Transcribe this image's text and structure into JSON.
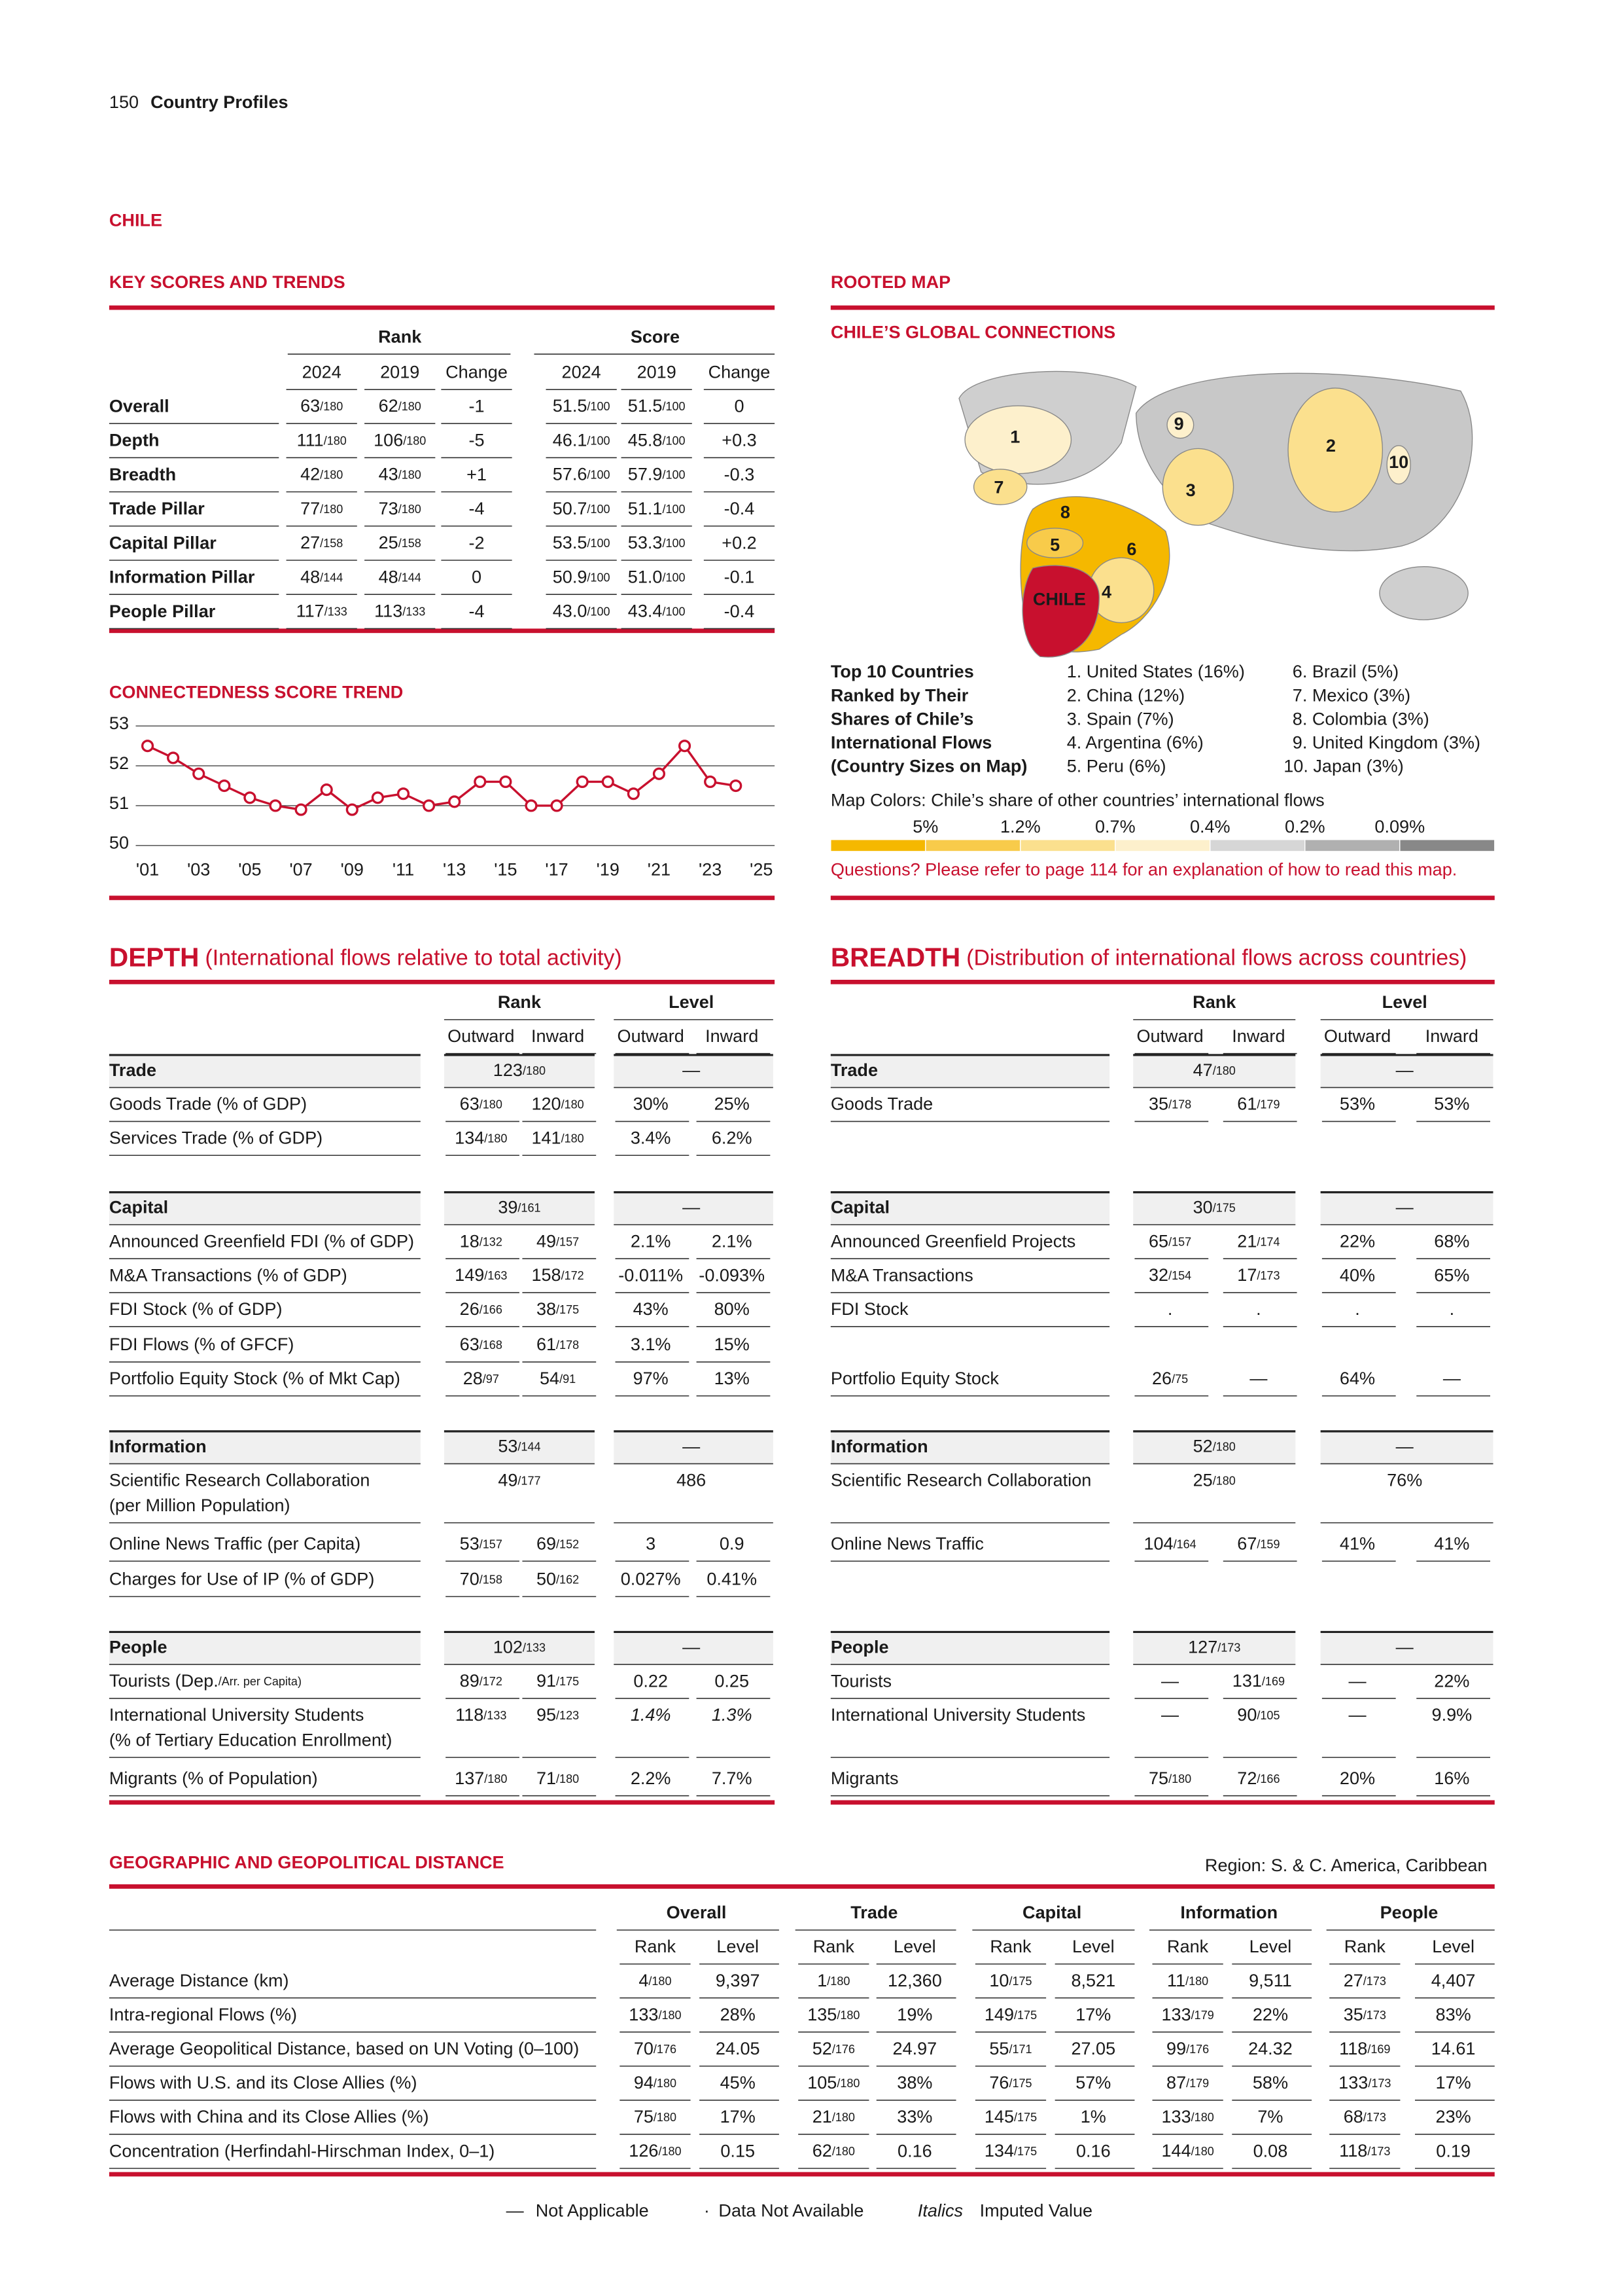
{
  "header": {
    "page": "150",
    "section": "Country Profiles"
  },
  "country": "CHILE",
  "key_scores": {
    "title": "KEY SCORES AND TRENDS",
    "groups": [
      "Rank",
      "Score"
    ],
    "columns": [
      "2024",
      "2019",
      "Change",
      "2024",
      "2019",
      "Change"
    ],
    "rows": [
      [
        "Overall",
        "63/180",
        "62/180",
        "-1",
        "51.5/100",
        "51.5/100",
        "0"
      ],
      [
        "Depth",
        "111/180",
        "106/180",
        "-5",
        "46.1/100",
        "45.8/100",
        "+0.3"
      ],
      [
        "Breadth",
        "42/180",
        "43/180",
        "+1",
        "57.6/100",
        "57.9/100",
        "-0.3"
      ],
      [
        "Trade Pillar",
        "77/180",
        "73/180",
        "-4",
        "50.7/100",
        "51.1/100",
        "-0.4"
      ],
      [
        "Capital Pillar",
        "27/158",
        "25/158",
        "-2",
        "53.5/100",
        "53.3/100",
        "+0.2"
      ],
      [
        "Information Pillar",
        "48/144",
        "48/144",
        "0",
        "50.9/100",
        "51.0/100",
        "-0.1"
      ],
      [
        "People Pillar",
        "117/133",
        "113/133",
        "-4",
        "43.0/100",
        "43.4/100",
        "-0.4"
      ]
    ]
  },
  "chart_data": {
    "type": "line",
    "title": "CONNECTEDNESS SCORE TREND",
    "color": "#c8102e",
    "x": [
      2001,
      2002,
      2003,
      2004,
      2005,
      2006,
      2007,
      2008,
      2009,
      2010,
      2011,
      2012,
      2013,
      2014,
      2015,
      2016,
      2017,
      2018,
      2019,
      2020,
      2021,
      2022,
      2023,
      2024
    ],
    "values": [
      52.5,
      52.2,
      51.8,
      51.5,
      51.2,
      51.0,
      50.9,
      51.4,
      50.9,
      51.2,
      51.3,
      51.0,
      51.1,
      51.6,
      51.6,
      51.0,
      51.0,
      51.6,
      51.6,
      51.3,
      51.8,
      52.5,
      51.6,
      51.5
    ],
    "xlim": [
      2001,
      2025
    ],
    "xticks": [
      {
        "value": 2001,
        "label": "'01"
      },
      {
        "value": 2003,
        "label": "'03"
      },
      {
        "value": 2005,
        "label": "'05"
      },
      {
        "value": 2007,
        "label": "'07"
      },
      {
        "value": 2009,
        "label": "'09"
      },
      {
        "value": 2011,
        "label": "'11"
      },
      {
        "value": 2013,
        "label": "'13"
      },
      {
        "value": 2015,
        "label": "'15"
      },
      {
        "value": 2017,
        "label": "'17"
      },
      {
        "value": 2019,
        "label": "'19"
      },
      {
        "value": 2021,
        "label": "'21"
      },
      {
        "value": 2023,
        "label": "'23"
      },
      {
        "value": 2025,
        "label": "'25"
      }
    ],
    "ylim": [
      50,
      53
    ],
    "yticks": [
      50,
      51,
      52,
      53
    ],
    "grid": true
  },
  "rooted_map": {
    "title": "ROOTED MAP",
    "subtitle": "CHILE’S GLOBAL CONNECTIONS",
    "labels": [
      "1",
      "2",
      "3",
      "4",
      "5",
      "6",
      "7",
      "8",
      "9",
      "10",
      "CHILE"
    ],
    "top10_heading": [
      "Top 10 Countries",
      "Ranked by Their",
      "Shares of Chile’s",
      "International Flows",
      "(Country Sizes on Map)"
    ],
    "countries": [
      "1. United States (16%)",
      "2. China (12%)",
      "3. Spain (7%)",
      "4. Argentina (6%)",
      "5. Peru (6%)",
      "6. Brazil (5%)",
      "7. Mexico (3%)",
      "8. Colombia (3%)",
      "9. United Kingdom (3%)",
      "10. Japan (3%)"
    ],
    "colors_heading": "Map Colors: Chile’s share of other countries’ international flows",
    "scale_labels": [
      "5%",
      "1.2%",
      "0.7%",
      "0.4%",
      "0.2%",
      "0.09%"
    ],
    "scale_colors": [
      "#f5b800",
      "#f8cb4a",
      "#fbe08e",
      "#fdf0cc",
      "#d6d6d6",
      "#b0b0b0",
      "#888888"
    ],
    "note": "Questions? Please refer to page 114 for an explanation of how to read this map."
  },
  "depth": {
    "title": "DEPTH",
    "subtitle": "(International flows relative to total activity)",
    "groups": [
      "Rank",
      "Level"
    ],
    "columns": [
      "Outward",
      "Inward",
      "Outward",
      "Inward"
    ],
    "sections": [
      {
        "name": "Trade",
        "rank": "123/180",
        "level": "—",
        "rows": [
          {
            "label": [
              "Goods Trade (% of GDP)"
            ],
            "cells": [
              "63/180",
              "120/180",
              "30%",
              "25%"
            ]
          },
          {
            "label": [
              "Services Trade (% of GDP)"
            ],
            "cells": [
              "134/180",
              "141/180",
              "3.4%",
              "6.2%"
            ]
          }
        ]
      },
      {
        "name": "Capital",
        "rank": "39/161",
        "level": "—",
        "rows": [
          {
            "label": [
              "Announced Greenfield FDI (% of GDP)"
            ],
            "cells": [
              "18/132",
              "49/157",
              "2.1%",
              "2.1%"
            ]
          },
          {
            "label": [
              "M&A Transactions (% of GDP)"
            ],
            "cells": [
              "149/163",
              "158/172",
              "-0.011%",
              "-0.093%"
            ]
          },
          {
            "label": [
              "FDI Stock (% of GDP)"
            ],
            "cells": [
              "26/166",
              "38/175",
              "43%",
              "80%"
            ]
          },
          {
            "label": [
              "FDI Flows (% of GFCF)"
            ],
            "cells": [
              "63/168",
              "61/178",
              "3.1%",
              "15%"
            ]
          },
          {
            "label": [
              "Portfolio Equity Stock (% of Mkt Cap)"
            ],
            "cells": [
              "28/97",
              "54/91",
              "97%",
              "13%"
            ]
          }
        ]
      },
      {
        "name": "Information",
        "rank": "53/144",
        "level": "—",
        "rows": [
          {
            "label": [
              "Scientific Research Collaboration",
              "(per Million Population)"
            ],
            "cells": [
              "49/177",
              "486"
            ]
          },
          {
            "label": [
              "Online News Traffic (per Capita)"
            ],
            "cells": [
              "53/157",
              "69/152",
              "3",
              "0.9"
            ]
          },
          {
            "label": [
              "Charges for Use of IP (% of GDP)"
            ],
            "cells": [
              "70/158",
              "50/162",
              "0.027%",
              "0.41%"
            ]
          }
        ]
      },
      {
        "name": "People",
        "rank": "102/133",
        "level": "—",
        "rows": [
          {
            "label": [
              "Tourists (Dep./Arr. per Capita)"
            ],
            "cells": [
              "89/172",
              "91/175",
              "0.22",
              "0.25"
            ]
          },
          {
            "label": [
              "International University Students",
              "(% of Tertiary Education Enrollment)"
            ],
            "cells": [
              "118/133",
              "95/123",
              "1.4%",
              "1.3%"
            ],
            "italic": true
          },
          {
            "label": [
              "Migrants (% of Population)"
            ],
            "cells": [
              "137/180",
              "71/180",
              "2.2%",
              "7.7%"
            ]
          }
        ]
      }
    ]
  },
  "breadth": {
    "title": "BREADTH",
    "subtitle": "(Distribution of international flows across countries)",
    "groups": [
      "Rank",
      "Level"
    ],
    "columns": [
      "Outward",
      "Inward",
      "Outward",
      "Inward"
    ],
    "sections": [
      {
        "name": "Trade",
        "rank": "47/180",
        "level": "—",
        "rows": [
          {
            "label": [
              "Goods Trade"
            ],
            "cells": [
              "35/178",
              "61/179",
              "53%",
              "53%"
            ]
          }
        ]
      },
      {
        "name": "Capital",
        "rank": "30/175",
        "level": "—",
        "rows": [
          {
            "label": [
              "Announced Greenfield Projects"
            ],
            "cells": [
              "65/157",
              "21/174",
              "22%",
              "68%"
            ]
          },
          {
            "label": [
              "M&A Transactions"
            ],
            "cells": [
              "32/154",
              "17/173",
              "40%",
              "65%"
            ]
          },
          {
            "label": [
              "FDI Stock"
            ],
            "cells": [
              ".",
              ".",
              ".",
              "."
            ]
          },
          {
            "label": [
              "Portfolio Equity Stock"
            ],
            "cells": [
              "26/75",
              "—",
              "64%",
              "—"
            ]
          }
        ]
      },
      {
        "name": "Information",
        "rank": "52/180",
        "level": "—",
        "rows": [
          {
            "label": [
              "Scientific Research Collaboration"
            ],
            "cells": [
              "25/180",
              "76%"
            ]
          },
          {
            "label": [
              "Online News Traffic"
            ],
            "cells": [
              "104/164",
              "67/159",
              "41%",
              "41%"
            ]
          }
        ]
      },
      {
        "name": "People",
        "rank": "127/173",
        "level": "—",
        "rows": [
          {
            "label": [
              "Tourists"
            ],
            "cells": [
              "—",
              "131/169",
              "—",
              "22%"
            ]
          },
          {
            "label": [
              "International University Students"
            ],
            "cells": [
              "—",
              "90/105",
              "—",
              "9.9%"
            ]
          },
          {
            "label": [
              "Migrants"
            ],
            "cells": [
              "75/180",
              "72/166",
              "20%",
              "16%"
            ]
          }
        ]
      }
    ]
  },
  "distance": {
    "title": "GEOGRAPHIC AND GEOPOLITICAL DISTANCE",
    "region": "Region: S. & C. America, Caribbean",
    "groups": [
      "Overall",
      "Trade",
      "Capital",
      "Information",
      "People"
    ],
    "columns": [
      "Rank",
      "Level"
    ],
    "rows": [
      {
        "label": "Average Distance (km)",
        "cells": [
          "4/180",
          "9,397",
          "1/180",
          "12,360",
          "10/175",
          "8,521",
          "11/180",
          "9,511",
          "27/173",
          "4,407"
        ]
      },
      {
        "label": "Intra-regional Flows (%)",
        "cells": [
          "133/180",
          "28%",
          "135/180",
          "19%",
          "149/175",
          "17%",
          "133/179",
          "22%",
          "35/173",
          "83%"
        ]
      },
      {
        "label": "Average Geopolitical Distance, based on UN Voting (0–100)",
        "cells": [
          "70/176",
          "24.05",
          "52/176",
          "24.97",
          "55/171",
          "27.05",
          "99/176",
          "24.32",
          "118/169",
          "14.61"
        ]
      },
      {
        "label": "Flows with U.S. and its Close Allies (%)",
        "cells": [
          "94/180",
          "45%",
          "105/180",
          "38%",
          "76/175",
          "57%",
          "87/179",
          "58%",
          "133/173",
          "17%"
        ]
      },
      {
        "label": "Flows with China and its Close Allies (%)",
        "cells": [
          "75/180",
          "17%",
          "21/180",
          "33%",
          "145/175",
          "1%",
          "133/180",
          "7%",
          "68/173",
          "23%"
        ]
      },
      {
        "label": "Concentration (Herfindahl-Hirschman Index, 0–1)",
        "cells": [
          "126/180",
          "0.15",
          "62/180",
          "0.16",
          "134/175",
          "0.16",
          "144/180",
          "0.08",
          "118/173",
          "0.19"
        ]
      }
    ]
  },
  "legend": [
    {
      "symbol": "—",
      "text": "Not Applicable"
    },
    {
      "symbol": "·",
      "text": "Data Not Available"
    },
    {
      "symbol": "Italics",
      "text": "Imputed Value"
    }
  ]
}
